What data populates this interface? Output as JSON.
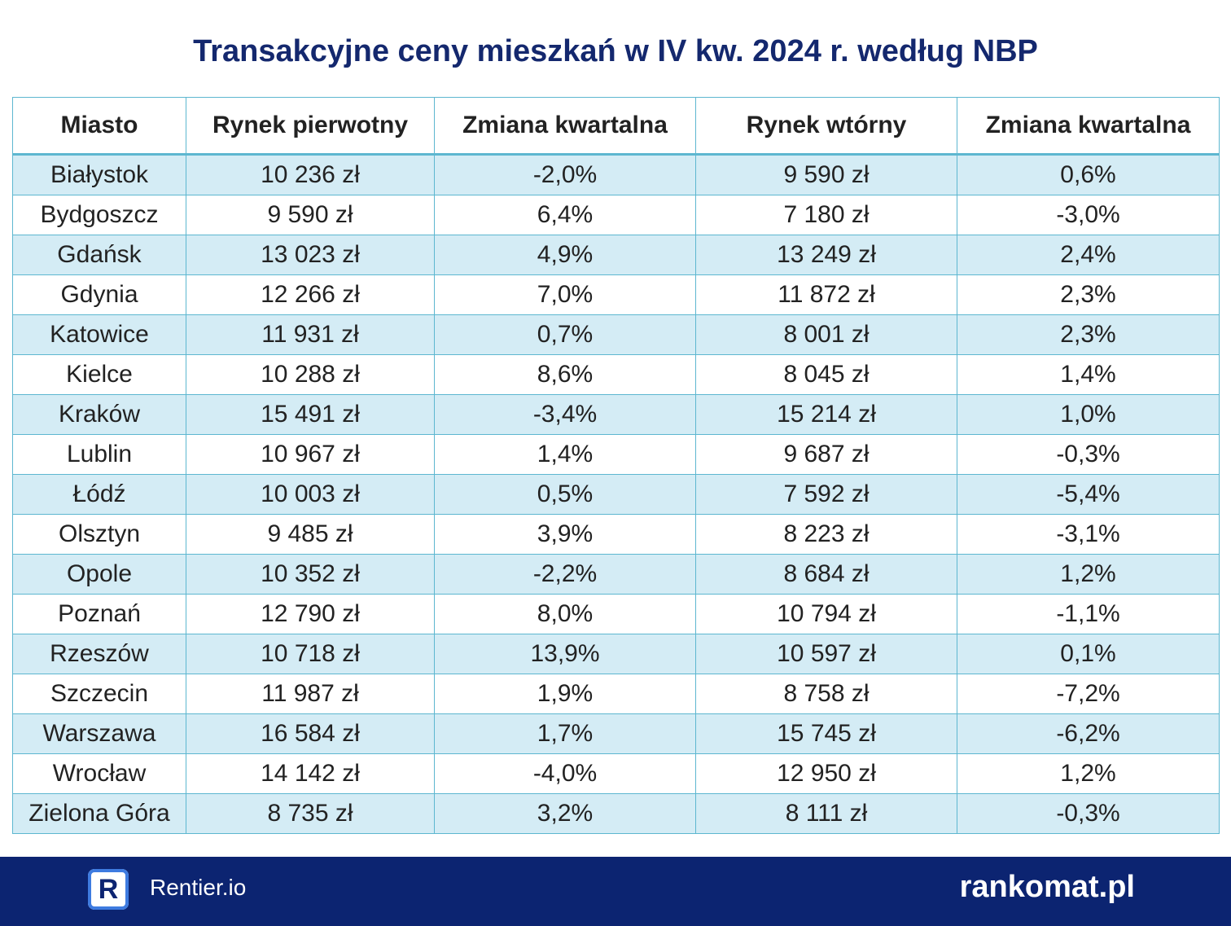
{
  "header": {
    "title": "Transakcyjne ceny mieszkań w IV kw. 2024 r. według NBP"
  },
  "table": {
    "columns": [
      "Miasto",
      "Rynek pierwotny",
      "Zmiana kwartalna",
      "Rynek wtórny",
      "Zmiana kwartalna"
    ],
    "rows": [
      [
        "Białystok",
        "10 236 zł",
        "-2,0%",
        "9 590 zł",
        "0,6%"
      ],
      [
        "Bydgoszcz",
        "9 590 zł",
        "6,4%",
        "7 180 zł",
        "-3,0%"
      ],
      [
        "Gdańsk",
        "13 023 zł",
        "4,9%",
        "13 249 zł",
        "2,4%"
      ],
      [
        "Gdynia",
        "12 266 zł",
        "7,0%",
        "11 872 zł",
        "2,3%"
      ],
      [
        "Katowice",
        "11 931 zł",
        "0,7%",
        "8 001 zł",
        "2,3%"
      ],
      [
        "Kielce",
        "10 288 zł",
        "8,6%",
        "8 045 zł",
        "1,4%"
      ],
      [
        "Kraków",
        "15 491 zł",
        "-3,4%",
        "15 214 zł",
        "1,0%"
      ],
      [
        "Lublin",
        "10 967 zł",
        "1,4%",
        "9 687 zł",
        "-0,3%"
      ],
      [
        "Łódź",
        "10 003 zł",
        "0,5%",
        "7 592 zł",
        "-5,4%"
      ],
      [
        "Olsztyn",
        "9 485 zł",
        "3,9%",
        "8 223 zł",
        "-3,1%"
      ],
      [
        "Opole",
        "10 352 zł",
        "-2,2%",
        "8 684 zł",
        "1,2%"
      ],
      [
        "Poznań",
        "12 790 zł",
        "8,0%",
        "10 794 zł",
        "-1,1%"
      ],
      [
        "Rzeszów",
        "10 718 zł",
        "13,9%",
        "10 597 zł",
        "0,1%"
      ],
      [
        "Szczecin",
        "11 987 zł",
        "1,9%",
        "8 758 zł",
        "-7,2%"
      ],
      [
        "Warszawa",
        "16 584 zł",
        "1,7%",
        "15 745 zł",
        "-6,2%"
      ],
      [
        "Wrocław",
        "14 142 zł",
        "-4,0%",
        "12 950 zł",
        "1,2%"
      ],
      [
        "Zielona Góra",
        "8 735 zł",
        "3,2%",
        "8 111 zł",
        "-0,3%"
      ]
    ]
  },
  "footer": {
    "icon": "R",
    "left_brand": "Rentier.io",
    "right_brand": "rankomat.pl"
  }
}
